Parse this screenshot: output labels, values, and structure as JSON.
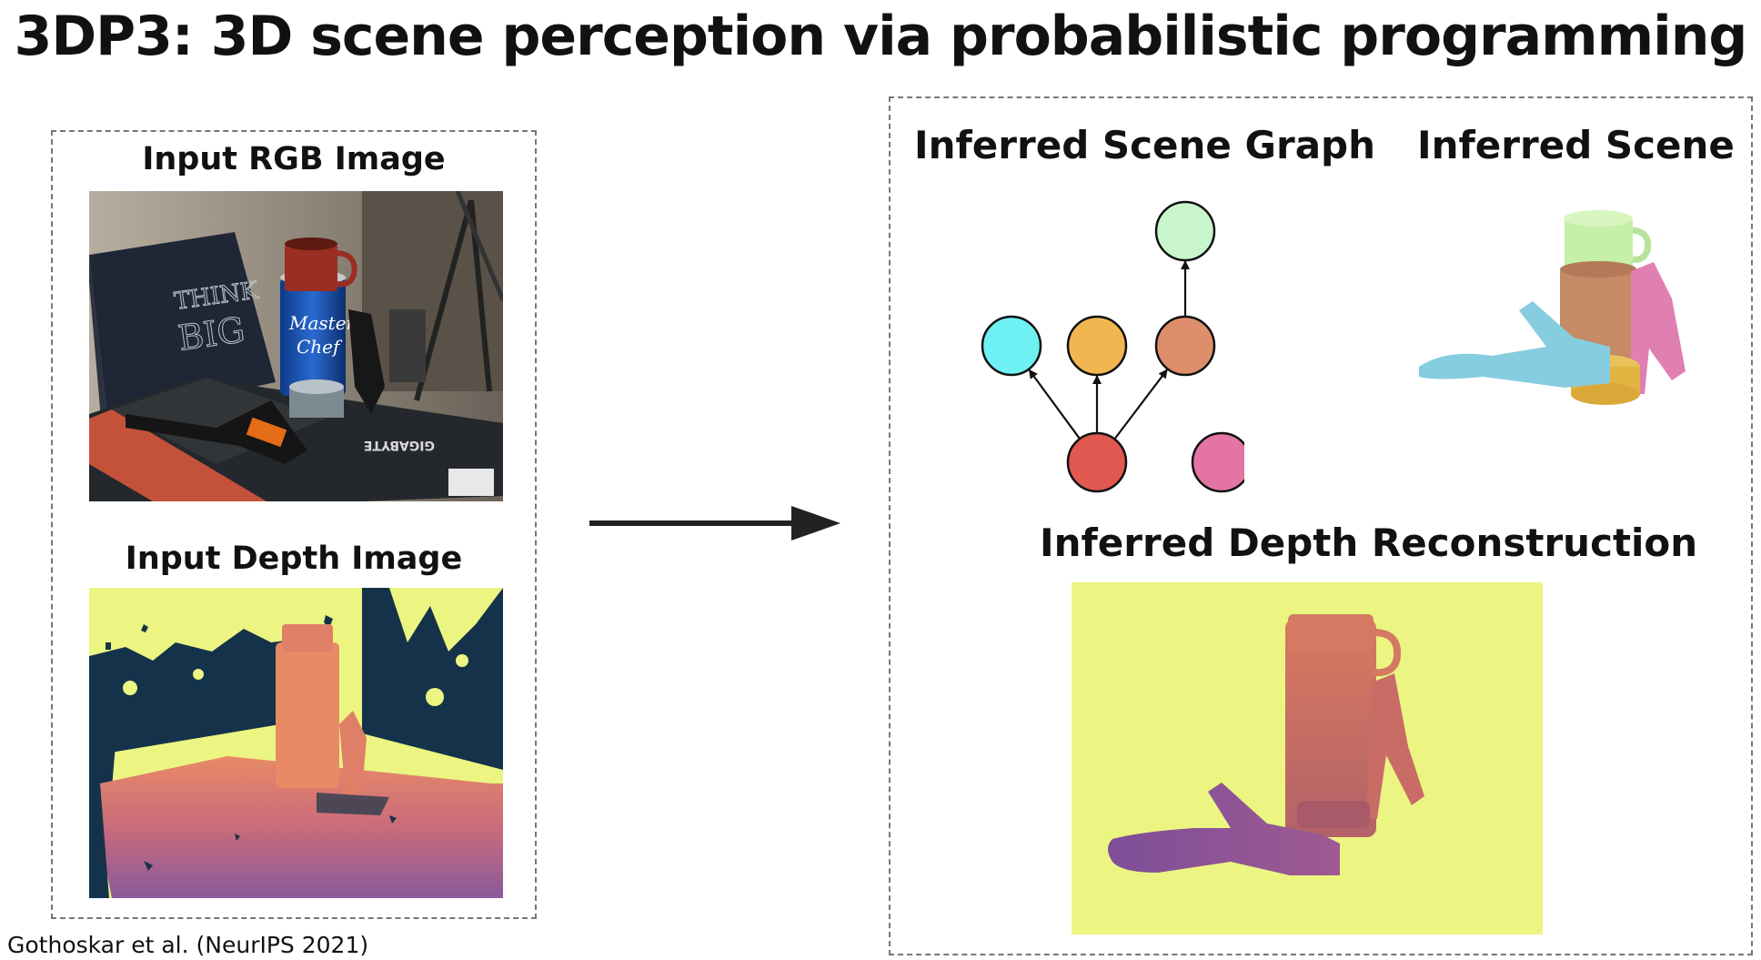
{
  "title": "3DP3: 3D scene perception via probabilistic programming",
  "left_panel": {
    "rgb_label": "Input RGB Image",
    "depth_label": "Input Depth Image"
  },
  "right_panel": {
    "graph_label": "Inferred Scene Graph",
    "scene_label": "Inferred Scene",
    "depth_label": "Inferred Depth Reconstruction"
  },
  "photo_text": {
    "book_line1": "THINK",
    "book_line2": "BIG",
    "can_line1": "Master",
    "can_line2": "Chef",
    "box_brand": "GIGABYTE"
  },
  "scene_graph": {
    "nodes": [
      {
        "id": "green",
        "color": "#c9f5cc"
      },
      {
        "id": "cyan",
        "color": "#6ff0f2"
      },
      {
        "id": "orange",
        "color": "#f2b650"
      },
      {
        "id": "salmon",
        "color": "#df8e6c"
      },
      {
        "id": "red",
        "color": "#e05850"
      },
      {
        "id": "pink",
        "color": "#e374a4"
      }
    ],
    "edges": [
      [
        "red",
        "cyan"
      ],
      [
        "red",
        "orange"
      ],
      [
        "red",
        "salmon"
      ],
      [
        "salmon",
        "green"
      ]
    ]
  },
  "colors": {
    "depth_background": "#ecf582",
    "depth_dark": "#14334a",
    "arrow": "#222222",
    "panel_border": "#777777"
  },
  "citation": "Gothoskar et al. (NeurIPS 2021)"
}
